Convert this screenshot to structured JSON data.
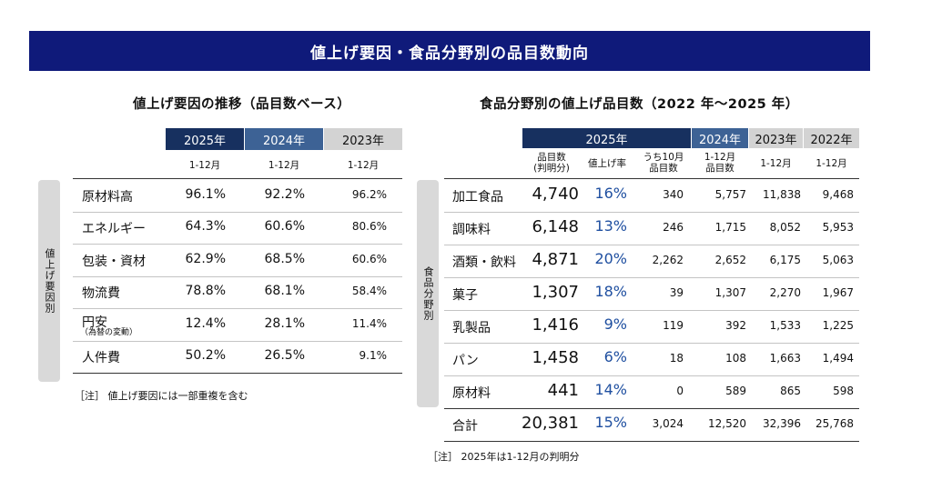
{
  "banner_title": "値上げ要因・食品分野別の品目数動向",
  "left": {
    "subtitle": "値上げ要因の推移（品目数ベース）",
    "years": [
      "2025年",
      "2024年",
      "2023年"
    ],
    "period": "1-12月",
    "side_label": "値上げ要因別",
    "rows": [
      {
        "label": "原材料高",
        "sub": "",
        "v2025": "96.1%",
        "v2024": "92.2%",
        "v2023": "96.2%"
      },
      {
        "label": "エネルギー",
        "sub": "",
        "v2025": "64.3%",
        "v2024": "60.6%",
        "v2023": "80.6%"
      },
      {
        "label": "包装・資材",
        "sub": "",
        "v2025": "62.9%",
        "v2024": "68.5%",
        "v2023": "60.6%"
      },
      {
        "label": "物流費",
        "sub": "",
        "v2025": "78.8%",
        "v2024": "68.1%",
        "v2023": "58.4%"
      },
      {
        "label": "円安",
        "sub": "（為替の変動）",
        "v2025": "12.4%",
        "v2024": "28.1%",
        "v2023": "11.4%"
      },
      {
        "label": "人件費",
        "sub": "",
        "v2025": "50.2%",
        "v2024": "26.5%",
        "v2023": "9.1%"
      }
    ],
    "note": "［注］ 値上げ要因には一部重複を含む"
  },
  "right": {
    "subtitle": "食品分野別の値上げ品目数（2022 年～2025 年）",
    "years": [
      "2025年",
      "2024年",
      "2023年",
      "2022年"
    ],
    "subheaders": {
      "items": "品目数\n(判明分)",
      "rate": "値上げ率",
      "oct": "うち10月\n品目数",
      "y2024": "1-12月\n品目数",
      "y2023": "1-12月",
      "y2022": "1-12月"
    },
    "side_label": "食品分野別",
    "rows": [
      {
        "label": "加工食品",
        "items": "4,740",
        "rate": "16%",
        "oct": "340",
        "y2024": "5,757",
        "y2023": "11,838",
        "y2022": "9,468"
      },
      {
        "label": "調味料",
        "items": "6,148",
        "rate": "13%",
        "oct": "246",
        "y2024": "1,715",
        "y2023": "8,052",
        "y2022": "5,953"
      },
      {
        "label": "酒類・飲料",
        "items": "4,871",
        "rate": "20%",
        "oct": "2,262",
        "y2024": "2,652",
        "y2023": "6,175",
        "y2022": "5,063"
      },
      {
        "label": "菓子",
        "items": "1,307",
        "rate": "18%",
        "oct": "39",
        "y2024": "1,307",
        "y2023": "2,270",
        "y2022": "1,967"
      },
      {
        "label": "乳製品",
        "items": "1,416",
        "rate": "9%",
        "oct": "119",
        "y2024": "392",
        "y2023": "1,533",
        "y2022": "1,225"
      },
      {
        "label": "パン",
        "items": "1,458",
        "rate": "6%",
        "oct": "18",
        "y2024": "108",
        "y2023": "1,663",
        "y2022": "1,494"
      },
      {
        "label": "原材料",
        "items": "441",
        "rate": "14%",
        "oct": "0",
        "y2024": "589",
        "y2023": "865",
        "y2022": "598"
      }
    ],
    "total": {
      "label": "合計",
      "items": "20,381",
      "rate": "15%",
      "oct": "3,024",
      "y2024": "12,520",
      "y2023": "32,396",
      "y2022": "25,768"
    },
    "note": "［注］ 2025年は1-12月の判明分"
  }
}
